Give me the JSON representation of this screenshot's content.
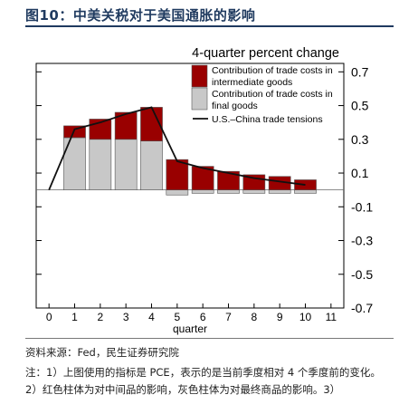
{
  "figure": {
    "title": "图10：中美关税对于美国通胀的影响",
    "source": "资料来源：Fed，民生证券研究院",
    "note": "注：1）上图使用的指标是 PCE，表示的是当前季度相对 4 个季度前的变化。2）红色柱体为对中间品的影响，灰色柱体为对最终商品的影响。3）"
  },
  "colors": {
    "intermediate": "#990000",
    "final": "#c8c8c8",
    "line": "#111111",
    "title": "#1f3a5f"
  },
  "chart_data": {
    "type": "bar",
    "title": "4-quarter percent change",
    "xlabel": "quarter",
    "ylabel": "",
    "x_ticks": [
      0,
      1,
      2,
      3,
      4,
      5,
      6,
      7,
      8,
      9,
      10,
      11
    ],
    "xlim": [
      -0.5,
      11.5
    ],
    "ylim": [
      -0.7,
      0.75
    ],
    "y_ticks": [
      0.7,
      0.5,
      0.3,
      0.1,
      -0.1,
      -0.3,
      -0.5,
      -0.7
    ],
    "y_tick_labels": [
      "0.7",
      "0.5",
      "0.3",
      "0.1",
      "-0.1",
      "-0.3",
      "-0.5",
      "-0.7"
    ],
    "categories": [
      1,
      2,
      3,
      4,
      5,
      6,
      7,
      8,
      9,
      10
    ],
    "series": [
      {
        "name": "Contribution of trade costs in intermediate goods",
        "kind": "bar",
        "values": [
          0.07,
          0.12,
          0.16,
          0.2,
          0.18,
          0.14,
          0.11,
          0.09,
          0.08,
          0.06
        ]
      },
      {
        "name": "Contribution of trade costs in final goods",
        "kind": "bar",
        "values": [
          0.31,
          0.3,
          0.3,
          0.29,
          -0.03,
          -0.02,
          -0.02,
          -0.02,
          -0.02,
          -0.02
        ]
      },
      {
        "name": "U.S.–China trade tensions",
        "kind": "line",
        "x": [
          0,
          1,
          2,
          3,
          4,
          5,
          6,
          7,
          8,
          9,
          10
        ],
        "values": [
          0,
          0.36,
          0.4,
          0.45,
          0.49,
          0.17,
          0.13,
          0.1,
          0.07,
          0.05,
          0.03
        ]
      }
    ],
    "legend_position": "top-right",
    "grid": false
  }
}
